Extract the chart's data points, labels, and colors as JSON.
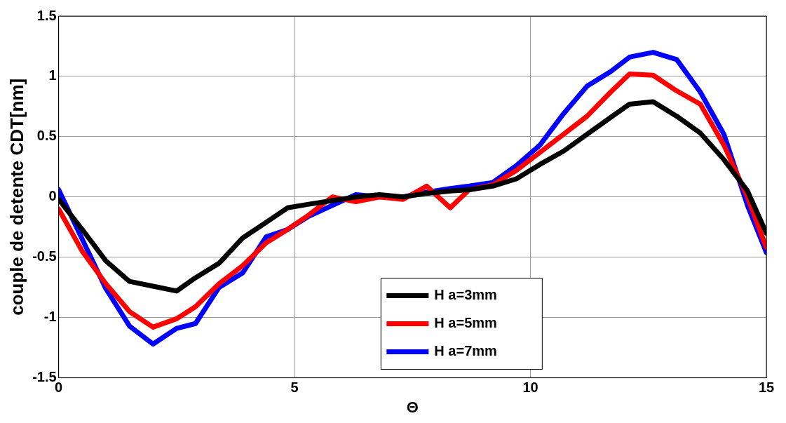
{
  "chart_data": {
    "type": "line",
    "xlabel": "Θ",
    "ylabel": "couple de detente CDT[nm]",
    "x": [
      0,
      0.5,
      1,
      1.5,
      2,
      2.5,
      2.9,
      3.4,
      3.9,
      4.4,
      4.85,
      5.3,
      5.8,
      6.3,
      6.8,
      7.3,
      7.8,
      8.3,
      8.7,
      9.2,
      9.7,
      10.2,
      10.7,
      11.2,
      11.7,
      12.1,
      12.6,
      13.1,
      13.6,
      14.1,
      14.6,
      15
    ],
    "series": [
      {
        "name": "H a=3mm",
        "color": "#000000",
        "values": [
          -0.02,
          -0.27,
          -0.53,
          -0.7,
          -0.74,
          -0.78,
          -0.67,
          -0.55,
          -0.34,
          -0.21,
          -0.09,
          -0.06,
          -0.03,
          0.0,
          0.02,
          0.0,
          0.03,
          0.05,
          0.06,
          0.09,
          0.15,
          0.27,
          0.38,
          0.52,
          0.66,
          0.77,
          0.79,
          0.67,
          0.53,
          0.31,
          0.05,
          -0.3
        ]
      },
      {
        "name": "H a=5mm",
        "color": "#ff0000",
        "values": [
          -0.1,
          -0.45,
          -0.72,
          -0.95,
          -1.08,
          -1.01,
          -0.91,
          -0.72,
          -0.57,
          -0.38,
          -0.27,
          -0.15,
          0.0,
          -0.04,
          0.0,
          -0.02,
          0.09,
          -0.09,
          0.06,
          0.1,
          0.22,
          0.37,
          0.52,
          0.67,
          0.87,
          1.02,
          1.01,
          0.88,
          0.77,
          0.43,
          0.0,
          -0.42
        ]
      },
      {
        "name": "H a=7mm",
        "color": "#0000ff",
        "values": [
          0.06,
          -0.35,
          -0.76,
          -1.07,
          -1.22,
          -1.09,
          -1.05,
          -0.75,
          -0.63,
          -0.33,
          -0.27,
          -0.16,
          -0.07,
          0.02,
          0.0,
          0.0,
          0.04,
          0.07,
          0.09,
          0.12,
          0.26,
          0.43,
          0.69,
          0.92,
          1.04,
          1.16,
          1.2,
          1.14,
          0.87,
          0.52,
          -0.07,
          -0.46
        ]
      }
    ],
    "xlim": [
      0,
      15
    ],
    "xticks": [
      0,
      5,
      10,
      15
    ],
    "ylim": [
      -1.5,
      1.5
    ],
    "yticks": [
      -1.5,
      -1,
      -0.5,
      0,
      0.5,
      1,
      1.5
    ],
    "grid": true,
    "legend": "bottom",
    "marker": "none",
    "line_style": "solid"
  }
}
